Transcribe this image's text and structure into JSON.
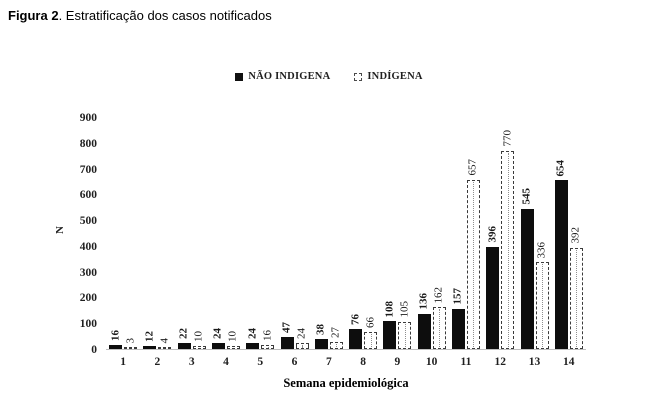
{
  "title": {
    "bold": "Figura 2",
    "rest": ". Estratificação dos casos notificados"
  },
  "legend": [
    {
      "label": "NÃO INDIGENA",
      "swatch": "solid-black-square"
    },
    {
      "label": "INDÍGENA",
      "swatch": "dashed-outline-square"
    }
  ],
  "colors": {
    "bar_solid": "#0d0d0d",
    "bar_outline": "#3a3a3a",
    "axis_line": "#bfbfbf",
    "text": "#1f1f1f"
  },
  "chart_data": {
    "type": "bar",
    "categories": [
      "1",
      "2",
      "3",
      "4",
      "5",
      "6",
      "7",
      "8",
      "9",
      "10",
      "11",
      "12",
      "13",
      "14"
    ],
    "series": [
      {
        "name": "NÃO INDIGENA",
        "values": [
          16,
          12,
          22,
          24,
          24,
          47,
          38,
          76,
          108,
          136,
          157,
          396,
          545,
          654
        ]
      },
      {
        "name": "INDÍGENA",
        "values": [
          3,
          4,
          10,
          10,
          16,
          24,
          27,
          66,
          105,
          162,
          657,
          770,
          336,
          392
        ]
      }
    ],
    "title": "Figura 2. Estratificação dos casos notificados",
    "xlabel": "Semana epidemiológica",
    "ylabel": "N",
    "ylim": [
      0,
      900
    ],
    "yticks": [
      0,
      100,
      200,
      300,
      400,
      500,
      600,
      700,
      800,
      900
    ],
    "grid": false,
    "legend_position": "top",
    "data_labels": true,
    "data_label_rotation": 90
  }
}
